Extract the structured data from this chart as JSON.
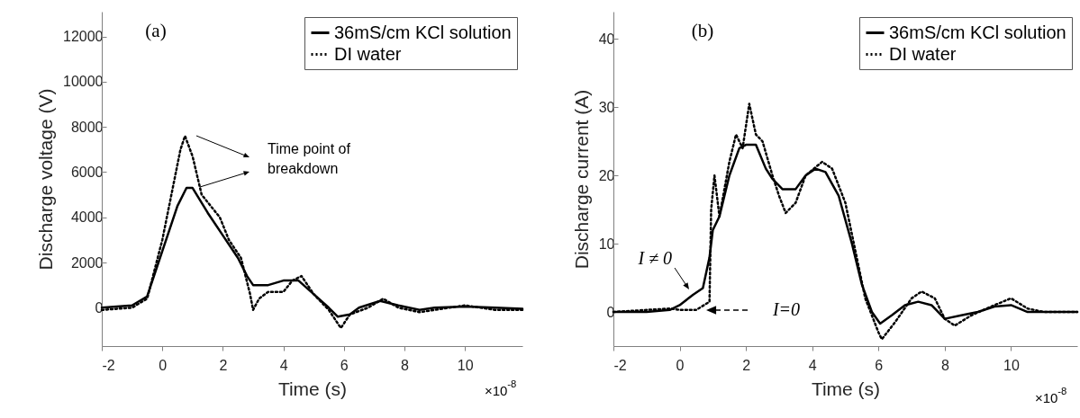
{
  "chart_data": [
    {
      "type": "line",
      "xlabel": "Time (s)",
      "ylabel": "Discharge voltage (V)",
      "xlim": [
        -2,
        11.9
      ],
      "xticks": [
        -2,
        0,
        2,
        4,
        6,
        8,
        10
      ],
      "ylim": [
        -1700,
        13100
      ],
      "yticks": [
        0,
        2000,
        4000,
        6000,
        8000,
        10000,
        12000
      ],
      "grid": false,
      "legend": "top right",
      "annotations": [
        "(a)",
        "Time point of breakdown",
        "×10$^{-8}$"
      ],
      "series": [
        {
          "name": "36mS/cm KCl solution",
          "color": "#000000",
          "line_style": "solid",
          "x": [
            -2,
            -1,
            -0.5,
            0,
            0.5,
            0.8,
            1.0,
            1.5,
            2,
            2.5,
            2.8,
            3,
            3.5,
            4,
            4.5,
            5,
            5.5,
            5.8,
            6.2,
            6.5,
            7.2,
            7.8,
            8.5,
            9,
            10,
            11,
            11.9
          ],
          "values": [
            0,
            100,
            500,
            2500,
            4500,
            5300,
            5300,
            4200,
            3200,
            2200,
            1400,
            1000,
            1000,
            1200,
            1200,
            600,
            0,
            -400,
            -300,
            0,
            300,
            100,
            -100,
            0,
            50,
            0,
            -50
          ]
        },
        {
          "name": "DI water",
          "color": "#000000",
          "line_style": "dotted",
          "x": [
            -2,
            -1,
            -0.5,
            0,
            0.3,
            0.6,
            0.75,
            1.0,
            1.3,
            1.6,
            1.9,
            2.2,
            2.6,
            2.9,
            3.0,
            3.2,
            3.5,
            4,
            4.3,
            4.6,
            5,
            5.5,
            5.9,
            6.2,
            6.8,
            7.3,
            7.8,
            8.5,
            9,
            10,
            11,
            11.9
          ],
          "values": [
            -100,
            0,
            400,
            3000,
            5000,
            7000,
            7600,
            6700,
            5000,
            4500,
            4000,
            3000,
            2200,
            600,
            -100,
            400,
            700,
            700,
            1200,
            1400,
            600,
            -100,
            -900,
            -300,
            0,
            400,
            0,
            -200,
            -100,
            100,
            -100,
            -100
          ]
        }
      ]
    },
    {
      "type": "line",
      "xlabel": "Time (s)",
      "ylabel": "Discharge current (A)",
      "xlim": [
        -2,
        12
      ],
      "xticks": [
        -2,
        0,
        2,
        4,
        6,
        8,
        10
      ],
      "ylim": [
        -5,
        44
      ],
      "yticks": [
        0,
        10,
        20,
        30,
        40
      ],
      "grid": false,
      "legend": "top right",
      "annotations": [
        "(b)",
        {
          "text": "I ≠ 0",
          "x": 0.4,
          "y": 2.5
        },
        "I=0",
        "×10$^{-8}$"
      ],
      "series": [
        {
          "name": "36mS/cm KCl solution",
          "color": "#000000",
          "line_style": "solid",
          "x": [
            -2,
            -1,
            -0.3,
            0,
            0.4,
            0.7,
            0.9,
            1.0,
            1.2,
            1.5,
            1.8,
            2.0,
            2.3,
            2.6,
            2.8,
            3.1,
            3.5,
            3.8,
            4.1,
            4.4,
            4.8,
            5.2,
            5.5,
            5.8,
            6.05,
            6.4,
            6.8,
            7.2,
            7.6,
            8,
            8.5,
            9,
            9.5,
            10,
            10.5,
            11,
            12
          ],
          "values": [
            0,
            0,
            0.3,
            1,
            2.5,
            3.5,
            8,
            12,
            14,
            20,
            24,
            24.5,
            24.5,
            21,
            19.5,
            18,
            18,
            20,
            21,
            20.5,
            17,
            10,
            4,
            0,
            -1.7,
            -0.5,
            1,
            1.5,
            1,
            -1,
            -0.5,
            0,
            0.8,
            1,
            0,
            0,
            0
          ]
        },
        {
          "name": "DI water",
          "color": "#000000",
          "line_style": "dotted",
          "x": [
            -2,
            -0.3,
            0,
            0.5,
            0.9,
            0.95,
            1.05,
            1.2,
            1.5,
            1.7,
            1.9,
            2.1,
            2.3,
            2.5,
            2.8,
            3.0,
            3.2,
            3.5,
            3.8,
            4.3,
            4.6,
            5.0,
            5.3,
            5.6,
            6.0,
            6.1,
            6.5,
            7.0,
            7.3,
            7.7,
            8,
            8.3,
            8.8,
            9.5,
            10,
            10.5,
            11,
            12
          ],
          "values": [
            0,
            0.5,
            0.3,
            0.3,
            1.5,
            15,
            20,
            14,
            22,
            26,
            24,
            30.5,
            26,
            25,
            20,
            17,
            14.5,
            16,
            20,
            22,
            21,
            16,
            9,
            2,
            -3,
            -4,
            -1.5,
            2,
            3,
            2,
            -1,
            -2,
            -0.5,
            1,
            2,
            0.5,
            0,
            0
          ]
        }
      ]
    }
  ]
}
